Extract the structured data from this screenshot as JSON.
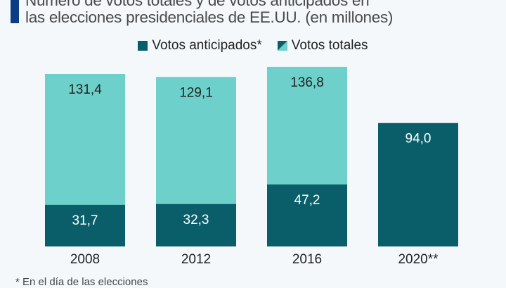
{
  "title_lines": [
    "Número de votos totales y de votos anticipados en",
    "las elecciones presidenciales de EE.UU. (en millones)"
  ],
  "footnote": "*   En el día de las elecciones",
  "colors": {
    "early": "#0a5e69",
    "total": "#6dd0ca",
    "accent": "#0b3c84"
  },
  "chart_data": {
    "type": "bar",
    "title": "Número de votos totales y de votos anticipados en las elecciones presidenciales de EE.UU. (en millones)",
    "categories": [
      "2008",
      "2012",
      "2016",
      "2020**"
    ],
    "legend": "top",
    "series": [
      {
        "name": "Votos anticipados*",
        "values": [
          31.7,
          32.3,
          47.2,
          94.0
        ],
        "labels": [
          "31,7",
          "32,3",
          "47,2",
          "94,0"
        ]
      },
      {
        "name": "Votos totales",
        "values": [
          131.4,
          129.1,
          136.8,
          null
        ],
        "labels": [
          "131,4",
          "129,1",
          "136,8",
          ""
        ]
      }
    ],
    "grid": false
  }
}
